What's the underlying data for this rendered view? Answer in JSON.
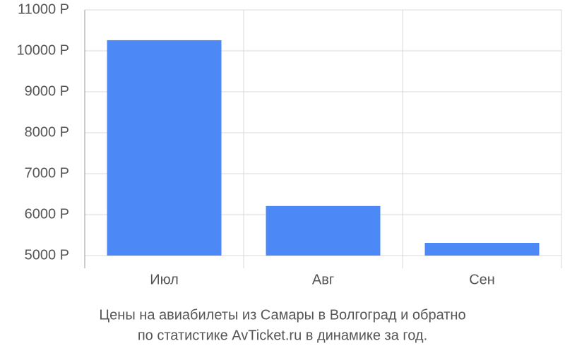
{
  "chart_data": {
    "type": "bar",
    "title": [
      "Цены на авиабилеты из Самары в Волгоград и обратно",
      "по статистике AvTicket.ru в динамике за год."
    ],
    "categories": [
      "Июл",
      "Авг",
      "Сен"
    ],
    "values": [
      10260,
      6210,
      5310
    ],
    "color": "#4d88f7",
    "ylim": [
      5000,
      11000
    ],
    "yticks": [
      {
        "value": 5000,
        "label": "5000 Р"
      },
      {
        "value": 6000,
        "label": "6000 Р"
      },
      {
        "value": 7000,
        "label": "7000 Р"
      },
      {
        "value": 8000,
        "label": "8000 Р"
      },
      {
        "value": 9000,
        "label": "9000 Р"
      },
      {
        "value": 10000,
        "label": "10000 Р"
      },
      {
        "value": 11000,
        "label": "11000 Р"
      }
    ],
    "grid": true
  }
}
